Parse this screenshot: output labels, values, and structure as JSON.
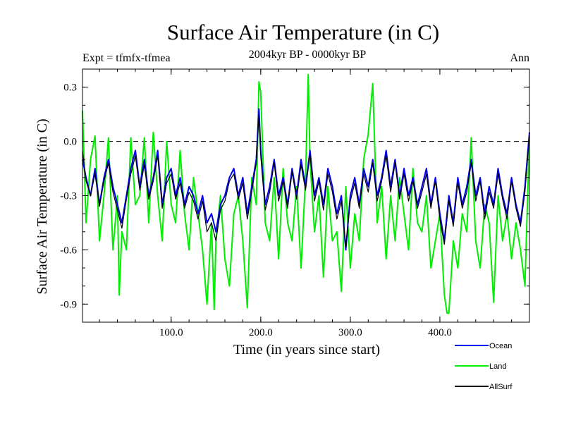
{
  "chart_data": {
    "type": "line",
    "title": "Surface Air Temperature (in C)",
    "subtitle": "2004kyr BP - 0000kyr BP",
    "left_label": "Expt = tfmfx-tfmea",
    "right_label": "Ann",
    "xlabel": "Time (in years since start)",
    "ylabel": "Surface Air Temperature (in C)",
    "xlim": [
      1,
      500
    ],
    "ylim": [
      -1.0,
      0.4
    ],
    "x_ticks": [
      100,
      200,
      300,
      400
    ],
    "x_tick_labels": [
      "100.0",
      "200.0",
      "300.0",
      "400.0"
    ],
    "y_ticks": [
      0.3,
      0.0,
      -0.3,
      -0.6,
      -0.9
    ],
    "y_tick_labels": [
      "0.3",
      "0.0",
      "-0.3",
      "-0.6",
      "-0.9"
    ],
    "reference_line": {
      "y": 0.0,
      "style": "dashed"
    },
    "legend_position": "bottom-right",
    "series": [
      {
        "name": "Land",
        "color": "#00ee00",
        "x": [
          1,
          5,
          10,
          15,
          20,
          25,
          30,
          35,
          40,
          42,
          45,
          50,
          55,
          60,
          65,
          70,
          75,
          80,
          85,
          90,
          95,
          100,
          105,
          110,
          115,
          120,
          125,
          130,
          135,
          140,
          145,
          148,
          150,
          155,
          160,
          165,
          170,
          175,
          180,
          185,
          190,
          195,
          198,
          200,
          205,
          210,
          215,
          220,
          225,
          230,
          235,
          240,
          245,
          250,
          253,
          255,
          260,
          265,
          270,
          275,
          280,
          285,
          290,
          295,
          300,
          305,
          310,
          315,
          320,
          325,
          330,
          335,
          340,
          345,
          350,
          355,
          360,
          365,
          370,
          375,
          380,
          385,
          390,
          395,
          400,
          405,
          408,
          410,
          415,
          420,
          425,
          430,
          435,
          440,
          445,
          450,
          455,
          460,
          465,
          470,
          475,
          480,
          485,
          490,
          495,
          500
        ],
        "values": [
          0.17,
          -0.45,
          -0.1,
          0.03,
          -0.55,
          -0.3,
          0.02,
          -0.6,
          -0.3,
          -0.85,
          -0.5,
          -0.6,
          0.02,
          -0.35,
          -0.3,
          0.02,
          -0.45,
          0.05,
          -0.3,
          -0.55,
          0.0,
          -0.35,
          -0.45,
          -0.05,
          -0.4,
          -0.6,
          -0.2,
          -0.4,
          -0.6,
          -0.9,
          -0.45,
          -0.93,
          -0.55,
          -0.3,
          -0.65,
          -0.8,
          -0.4,
          -0.3,
          -0.55,
          -0.92,
          -0.2,
          -0.35,
          0.33,
          0.27,
          -0.45,
          -0.55,
          -0.2,
          -0.65,
          -0.15,
          -0.45,
          -0.55,
          -0.25,
          -0.7,
          -0.2,
          0.37,
          -0.1,
          -0.5,
          -0.3,
          -0.75,
          -0.25,
          -0.55,
          -0.5,
          -0.83,
          -0.25,
          -0.7,
          -0.4,
          -0.55,
          -0.1,
          0.04,
          0.32,
          -0.45,
          -0.25,
          -0.65,
          -0.3,
          -0.55,
          -0.2,
          -0.4,
          -0.6,
          -0.15,
          -0.45,
          -0.5,
          -0.3,
          -0.7,
          -0.55,
          -0.4,
          -0.85,
          -0.95,
          -0.95,
          -0.55,
          -0.7,
          -0.4,
          -0.5,
          0.02,
          -0.55,
          -0.7,
          -0.35,
          -0.45,
          -0.89,
          -0.3,
          -0.55,
          -0.4,
          -0.65,
          -0.45,
          -0.6,
          -0.8,
          0.03
        ]
      },
      {
        "name": "Ocean",
        "color": "#0000ee",
        "x": [
          1,
          5,
          10,
          15,
          20,
          25,
          30,
          35,
          40,
          45,
          50,
          55,
          60,
          65,
          70,
          75,
          80,
          85,
          90,
          95,
          100,
          105,
          110,
          115,
          120,
          125,
          130,
          135,
          140,
          145,
          150,
          155,
          160,
          165,
          170,
          175,
          180,
          185,
          190,
          195,
          198,
          200,
          205,
          210,
          215,
          220,
          225,
          230,
          235,
          240,
          245,
          250,
          255,
          260,
          265,
          270,
          275,
          280,
          285,
          290,
          295,
          300,
          305,
          310,
          315,
          320,
          325,
          330,
          335,
          340,
          345,
          350,
          355,
          360,
          365,
          370,
          375,
          380,
          385,
          390,
          395,
          400,
          405,
          410,
          415,
          420,
          425,
          430,
          435,
          440,
          445,
          450,
          455,
          460,
          465,
          470,
          475,
          480,
          485,
          490,
          495,
          500
        ],
        "values": [
          -0.1,
          -0.2,
          -0.3,
          -0.15,
          -0.35,
          -0.2,
          -0.1,
          -0.25,
          -0.35,
          -0.45,
          -0.3,
          -0.15,
          -0.05,
          -0.25,
          -0.1,
          -0.3,
          -0.2,
          -0.05,
          -0.35,
          -0.2,
          -0.15,
          -0.3,
          -0.2,
          -0.35,
          -0.25,
          -0.3,
          -0.4,
          -0.3,
          -0.45,
          -0.4,
          -0.5,
          -0.35,
          -0.3,
          -0.2,
          -0.15,
          -0.3,
          -0.2,
          -0.4,
          -0.25,
          -0.1,
          0.18,
          -0.05,
          -0.35,
          -0.25,
          -0.1,
          -0.3,
          -0.2,
          -0.35,
          -0.15,
          -0.3,
          -0.1,
          -0.25,
          -0.05,
          -0.3,
          -0.2,
          -0.35,
          -0.15,
          -0.25,
          -0.4,
          -0.3,
          -0.6,
          -0.3,
          -0.2,
          -0.35,
          -0.15,
          -0.25,
          -0.1,
          -0.3,
          -0.2,
          -0.05,
          -0.25,
          -0.1,
          -0.3,
          -0.15,
          -0.3,
          -0.2,
          -0.35,
          -0.25,
          -0.15,
          -0.35,
          -0.2,
          -0.4,
          -0.55,
          -0.3,
          -0.45,
          -0.2,
          -0.35,
          -0.25,
          -0.1,
          -0.3,
          -0.2,
          -0.4,
          -0.25,
          -0.35,
          -0.15,
          -0.3,
          -0.4,
          -0.2,
          -0.35,
          -0.45,
          -0.25,
          0.05
        ]
      },
      {
        "name": "AllSurf",
        "color": "#000000",
        "x": [
          1,
          5,
          10,
          15,
          20,
          25,
          30,
          35,
          40,
          45,
          50,
          55,
          60,
          65,
          70,
          75,
          80,
          85,
          90,
          95,
          100,
          105,
          110,
          115,
          120,
          125,
          130,
          135,
          140,
          145,
          150,
          155,
          160,
          165,
          170,
          175,
          180,
          185,
          190,
          195,
          198,
          200,
          205,
          210,
          215,
          220,
          225,
          230,
          235,
          240,
          245,
          250,
          255,
          260,
          265,
          270,
          275,
          280,
          285,
          290,
          295,
          300,
          305,
          310,
          315,
          320,
          325,
          330,
          335,
          340,
          345,
          350,
          355,
          360,
          365,
          370,
          375,
          380,
          385,
          390,
          395,
          400,
          405,
          410,
          415,
          420,
          425,
          430,
          435,
          440,
          445,
          450,
          455,
          460,
          465,
          470,
          475,
          480,
          485,
          490,
          495,
          500
        ],
        "values": [
          -0.05,
          -0.22,
          -0.3,
          -0.18,
          -0.36,
          -0.22,
          -0.12,
          -0.28,
          -0.38,
          -0.48,
          -0.32,
          -0.18,
          -0.08,
          -0.27,
          -0.13,
          -0.32,
          -0.22,
          -0.08,
          -0.37,
          -0.23,
          -0.18,
          -0.32,
          -0.23,
          -0.37,
          -0.28,
          -0.33,
          -0.43,
          -0.33,
          -0.5,
          -0.45,
          -0.55,
          -0.38,
          -0.33,
          -0.22,
          -0.18,
          -0.32,
          -0.23,
          -0.43,
          -0.28,
          -0.12,
          0.15,
          -0.08,
          -0.38,
          -0.28,
          -0.12,
          -0.33,
          -0.22,
          -0.37,
          -0.17,
          -0.32,
          -0.13,
          -0.27,
          -0.07,
          -0.33,
          -0.22,
          -0.38,
          -0.18,
          -0.28,
          -0.43,
          -0.33,
          -0.58,
          -0.33,
          -0.23,
          -0.37,
          -0.18,
          -0.28,
          -0.12,
          -0.33,
          -0.22,
          -0.08,
          -0.28,
          -0.12,
          -0.32,
          -0.18,
          -0.33,
          -0.22,
          -0.37,
          -0.28,
          -0.18,
          -0.37,
          -0.22,
          -0.43,
          -0.57,
          -0.33,
          -0.47,
          -0.23,
          -0.37,
          -0.28,
          -0.12,
          -0.33,
          -0.22,
          -0.43,
          -0.28,
          -0.37,
          -0.18,
          -0.32,
          -0.43,
          -0.22,
          -0.37,
          -0.47,
          -0.28,
          0.03
        ]
      }
    ]
  }
}
